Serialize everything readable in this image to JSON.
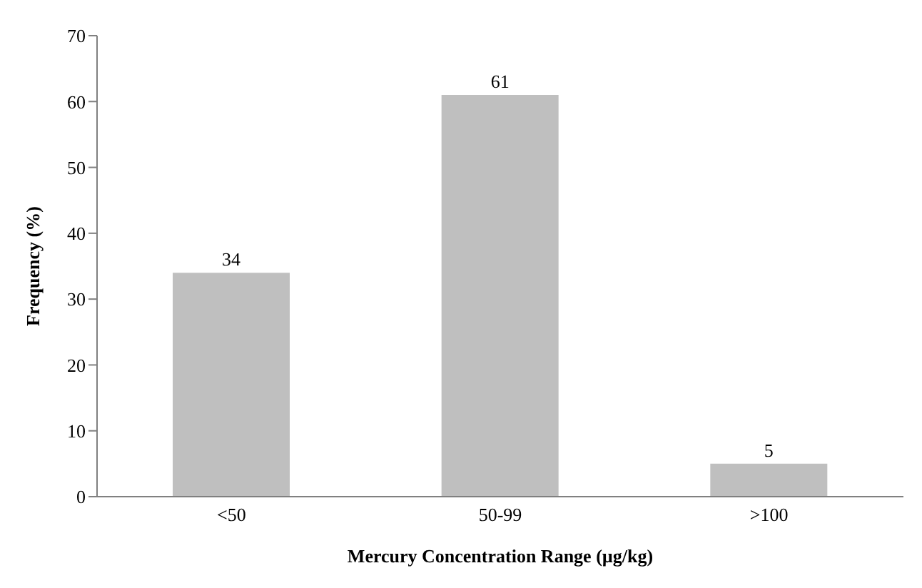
{
  "chart_data": {
    "type": "bar",
    "xlabel": "Mercury Concentration Range (µg/kg)",
    "ylabel": "Frequency (%)",
    "categories": [
      "<50",
      "50-99",
      ">100"
    ],
    "values": [
      34,
      61,
      5
    ],
    "color": "#bfbfbf",
    "ylim": [
      0,
      70
    ],
    "yticks": [
      0,
      10,
      20,
      30,
      40,
      50,
      60,
      70
    ],
    "grid": false,
    "data_labels": true
  }
}
